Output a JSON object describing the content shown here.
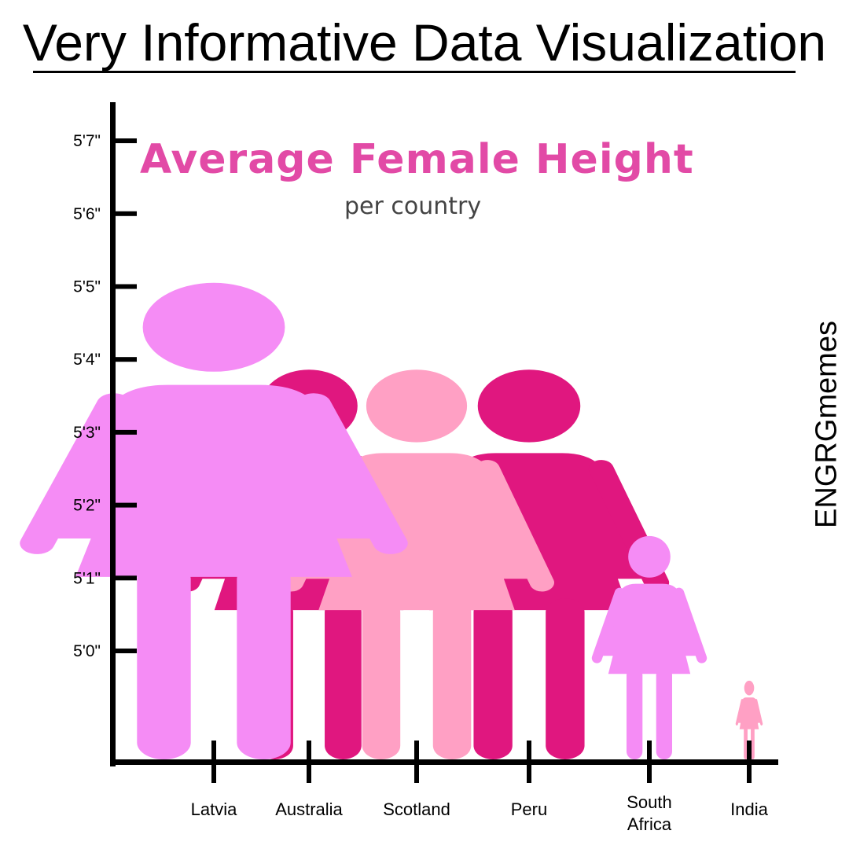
{
  "header": {
    "title": "Very Informative Data Visualization",
    "watermark": "ENGRGmemes"
  },
  "chart_data": {
    "type": "bar",
    "title": "Average Female Height",
    "subtitle": "per country",
    "xlabel": "",
    "ylabel": "",
    "y_ticks": [
      "5'0\"",
      "5'1\"",
      "5'2\"",
      "5'3\"",
      "5'4\"",
      "5'5\"",
      "5'6\"",
      "5'7\""
    ],
    "categories": [
      "Latvia",
      "Australia",
      "Scotland",
      "Peru",
      "South Africa",
      "India"
    ],
    "values": [
      65.1,
      63.9,
      63.9,
      63.9,
      61.6,
      59.6
    ],
    "ylim": [
      59.0,
      67.5
    ],
    "marker": "female-figure-icon",
    "colors": [
      "#f58cf5",
      "#e0177f",
      "#ffa0c4",
      "#e0177f",
      "#f58cf5",
      "#ffa0c4"
    ],
    "grid": false,
    "legend": "none"
  }
}
